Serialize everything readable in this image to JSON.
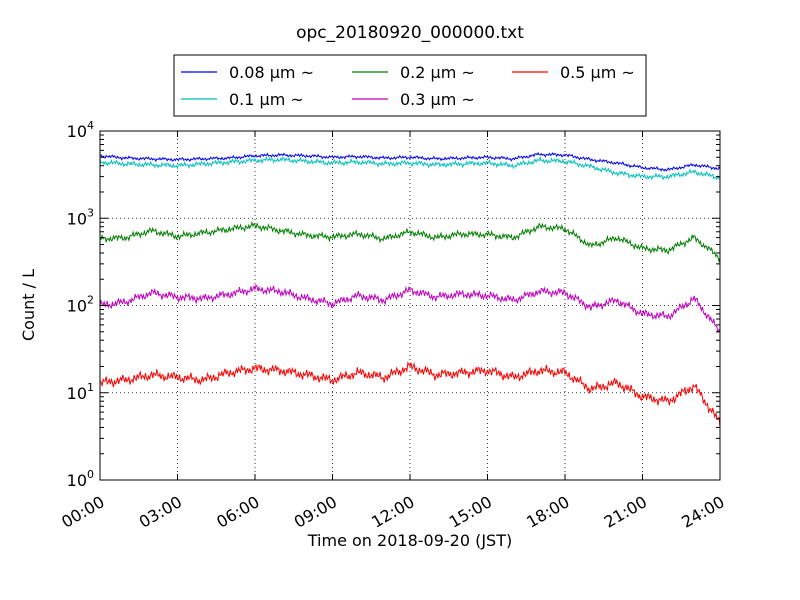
{
  "chart_data": {
    "type": "line",
    "title": "opc_20180920_000000.txt",
    "xlabel": "Time on 2018-09-20 (JST)",
    "ylabel": "Count / L",
    "yscale": "log",
    "ylim": [
      1,
      10000
    ],
    "xlim": [
      "00:00",
      "24:00"
    ],
    "x_ticks": [
      "00:00",
      "03:00",
      "06:00",
      "09:00",
      "12:00",
      "15:00",
      "18:00",
      "21:00",
      "24:00"
    ],
    "y_ticks": [
      {
        "base": "10",
        "exp": "0"
      },
      {
        "base": "10",
        "exp": "1"
      },
      {
        "base": "10",
        "exp": "2"
      },
      {
        "base": "10",
        "exp": "3"
      },
      {
        "base": "10",
        "exp": "4"
      }
    ],
    "grid": true,
    "legend_position": "top, above plot",
    "x": [
      "00:00",
      "01:00",
      "02:00",
      "03:00",
      "04:00",
      "05:00",
      "06:00",
      "07:00",
      "08:00",
      "09:00",
      "10:00",
      "11:00",
      "12:00",
      "13:00",
      "14:00",
      "15:00",
      "16:00",
      "17:00",
      "18:00",
      "19:00",
      "20:00",
      "21:00",
      "22:00",
      "23:00",
      "24:00"
    ],
    "series": [
      {
        "name": "0.08 μm ~",
        "color": "#0000ff",
        "values": [
          5200,
          4900,
          4800,
          4700,
          4800,
          4900,
          5200,
          5300,
          5200,
          5000,
          5100,
          4900,
          5000,
          4800,
          4900,
          5000,
          4800,
          5400,
          5300,
          4700,
          4300,
          3800,
          3600,
          4100,
          3700
        ]
      },
      {
        "name": "0.1 μm ~",
        "color": "#00bfbf",
        "values": [
          4400,
          4200,
          4100,
          4000,
          4200,
          4400,
          4600,
          4700,
          4500,
          4300,
          4400,
          4200,
          4300,
          4100,
          4200,
          4300,
          4000,
          4600,
          4500,
          3900,
          3300,
          3000,
          3000,
          3400,
          2900
        ]
      },
      {
        "name": "0.2 μm ~",
        "color": "#008000",
        "values": [
          580,
          600,
          720,
          620,
          680,
          750,
          820,
          720,
          640,
          610,
          660,
          580,
          700,
          600,
          660,
          650,
          600,
          800,
          760,
          480,
          600,
          450,
          430,
          600,
          350
        ]
      },
      {
        "name": "0.3 μm ~",
        "color": "#bf00bf",
        "values": [
          100,
          110,
          140,
          125,
          120,
          135,
          155,
          145,
          120,
          105,
          130,
          115,
          150,
          125,
          135,
          130,
          115,
          145,
          140,
          95,
          115,
          80,
          75,
          120,
          50
        ]
      },
      {
        "name": "0.5 μm ~",
        "color": "#ff0000",
        "values": [
          13,
          14,
          16,
          15,
          14,
          17,
          19,
          18,
          16,
          14,
          17,
          15,
          20,
          16,
          17,
          18,
          15,
          18,
          17,
          11,
          13,
          9,
          8,
          12,
          4.5
        ]
      }
    ]
  }
}
